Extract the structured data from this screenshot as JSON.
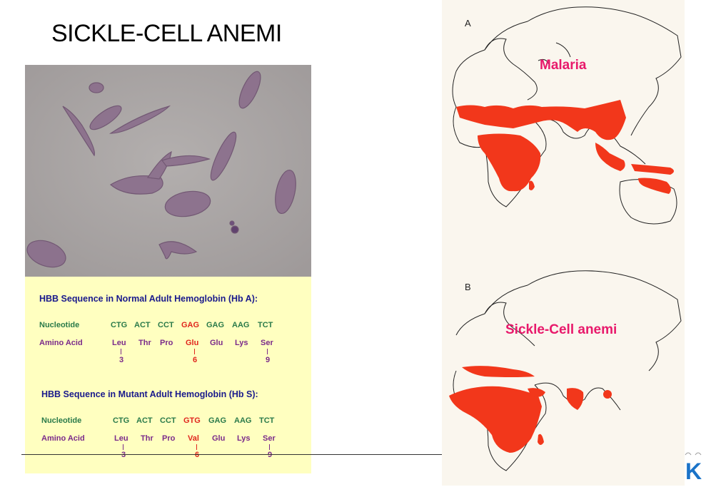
{
  "slide": {
    "title": "SICKLE-CELL ANEMI"
  },
  "sequence": {
    "normal_heading": "HBB Sequence in Normal Adult Hemoglobin (Hb A):",
    "mutant_heading": "HBB Sequence in Mutant Adult Hemoglobin (Hb S):",
    "nucleotide_label": "Nucleotide",
    "amino_label": "Amino Acid",
    "normal_codons": [
      "CTG",
      "ACT",
      "CCT",
      "GAG",
      "GAG",
      "AAG",
      "TCT"
    ],
    "normal_amino": [
      "Leu",
      "Thr",
      "Pro",
      "Glu",
      "Glu",
      "Lys",
      "Ser"
    ],
    "mutant_codons": [
      "CTG",
      "ACT",
      "CCT",
      "GTG",
      "GAG",
      "AAG",
      "TCT"
    ],
    "mutant_amino": [
      "Leu",
      "Thr",
      "Pro",
      "Val",
      "Glu",
      "Lys",
      "Ser"
    ],
    "positions": [
      "3",
      "6",
      "9"
    ],
    "highlight_color": "#e0251d"
  },
  "maps": {
    "a_letter": "A",
    "b_letter": "B",
    "malaria_label": "Malaria",
    "sickle_label": "Sickle-Cell anemi",
    "region_color": "#f2371b",
    "label_color": "#e8196b"
  },
  "logo": {
    "letter": "K",
    "color": "#1a73c8"
  }
}
